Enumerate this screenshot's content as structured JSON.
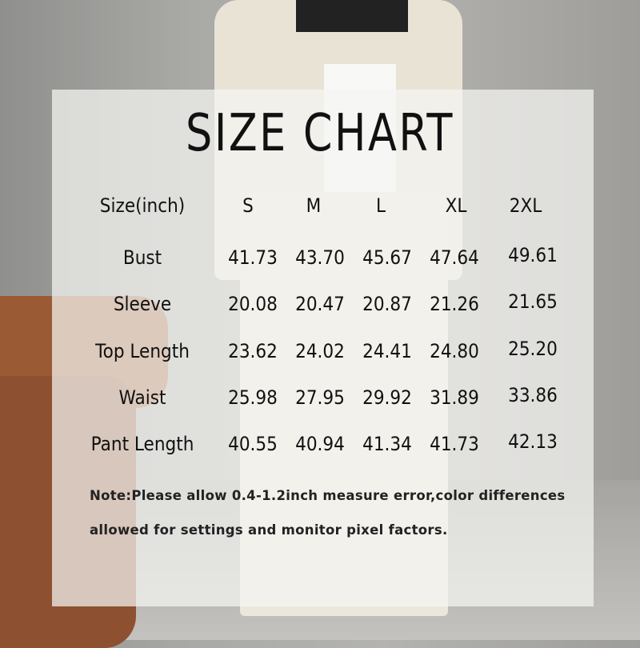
{
  "title": "SIZE CHART",
  "table": {
    "header_label": "Size(inch)",
    "sizes": [
      "S",
      "M",
      "L",
      "XL",
      "2XL"
    ],
    "rows": [
      {
        "label": "Bust",
        "values": [
          "41.73",
          "43.70",
          "45.67",
          "47.64",
          "49.61"
        ]
      },
      {
        "label": "Sleeve",
        "values": [
          "20.08",
          "20.47",
          "20.87",
          "21.26",
          "21.65"
        ]
      },
      {
        "label": "Top Length",
        "values": [
          "23.62",
          "24.02",
          "24.41",
          "24.80",
          "25.20"
        ]
      },
      {
        "label": "Waist",
        "values": [
          "25.98",
          "27.95",
          "29.92",
          "31.89",
          "33.86"
        ]
      },
      {
        "label": "Pant Length",
        "values": [
          "40.55",
          "40.94",
          "41.34",
          "41.73",
          "42.13"
        ]
      }
    ]
  },
  "note": {
    "line1": "Note:Please allow 0.4-1.2inch measure error,color differences",
    "line2": "allowed for settings and monitor pixel factors."
  }
}
